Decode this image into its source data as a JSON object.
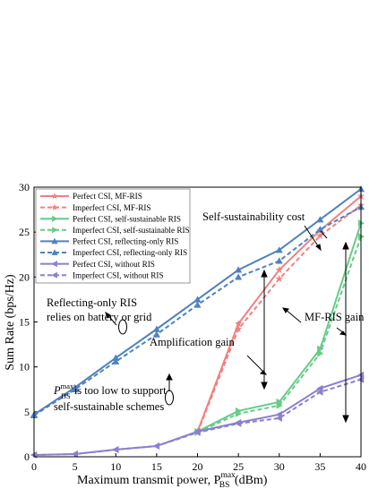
{
  "chart_data": {
    "type": "line",
    "xlabel": "Maximum transmit power, P",
    "xlabel_sub": "BS",
    "xlabel_sup": "max",
    "xlabel_unit": " (dBm)",
    "ylabel": "Sum Rate (bps/Hz)",
    "xlim": [
      0,
      40
    ],
    "ylim": [
      0,
      30
    ],
    "x": [
      0,
      5,
      10,
      15,
      20,
      25,
      30,
      35,
      40
    ],
    "xticks": [
      "0",
      "5",
      "10",
      "15",
      "20",
      "25",
      "30",
      "35",
      "40"
    ],
    "yticks": [
      "0",
      "5",
      "10",
      "15",
      "20",
      "25",
      "30"
    ],
    "grid": false,
    "legend_position": "top-left",
    "series": [
      {
        "name": "Perfect CSI, MF-RIS",
        "color": "#f08080",
        "dash": false,
        "marker": "star",
        "values": [
          null,
          null,
          null,
          null,
          2.8,
          14.8,
          20.8,
          25.2,
          29.0
        ]
      },
      {
        "name": "Imperfect CSI, MF-RIS",
        "color": "#f08080",
        "dash": true,
        "marker": "star",
        "values": [
          null,
          null,
          null,
          null,
          2.7,
          14.2,
          19.8,
          24.6,
          28.0
        ]
      },
      {
        "name": "Perfect CSI, self-sustainable RIS",
        "color": "#66cc88",
        "dash": false,
        "marker": "triangle-right",
        "values": [
          null,
          null,
          null,
          null,
          2.8,
          5.1,
          6.1,
          12.0,
          26.0
        ]
      },
      {
        "name": "Imperfect CSI, self-sustainable RIS",
        "color": "#66cc88",
        "dash": true,
        "marker": "triangle-right",
        "values": [
          null,
          null,
          null,
          null,
          2.7,
          4.8,
          5.7,
          11.5,
          24.5
        ]
      },
      {
        "name": "Perfect CSI, reflecting-only RIS",
        "color": "#4f81bd",
        "dash": false,
        "marker": "triangle-up",
        "values": [
          4.7,
          7.7,
          11.0,
          14.2,
          17.5,
          20.8,
          23.0,
          26.4,
          29.8
        ]
      },
      {
        "name": "Imperfect CSI, reflecting-only RIS",
        "color": "#4f81bd",
        "dash": true,
        "marker": "triangle-up",
        "values": [
          4.6,
          7.5,
          10.6,
          13.6,
          16.9,
          20.0,
          21.8,
          25.3,
          27.8
        ]
      },
      {
        "name": "Perfect CSI, without RIS",
        "color": "#8c7fcf",
        "dash": false,
        "marker": "triangle-left",
        "values": [
          0.2,
          0.3,
          0.8,
          1.2,
          2.8,
          3.8,
          4.7,
          7.6,
          9.1
        ]
      },
      {
        "name": "Imperfect CSI, without RIS",
        "color": "#8c7fcf",
        "dash": true,
        "marker": "triangle-left",
        "values": [
          0.2,
          0.3,
          0.8,
          1.2,
          2.7,
          3.7,
          4.3,
          7.2,
          8.6
        ]
      }
    ],
    "annotations": {
      "self_sustainability_cost": "Self-sustainability cost",
      "reflecting_only_line1": "Reflecting-only RIS",
      "reflecting_only_line2": "relies on battery or grid",
      "amplification_gain": "Amplification gain",
      "mf_ris_gain": "MF-RIS gain",
      "too_low_line1_pre": "P",
      "too_low_line1_sub": "BS",
      "too_low_line1_sup": "max",
      "too_low_line1_post": " is too low to support",
      "too_low_line2": "self-sustainable schemes"
    }
  }
}
